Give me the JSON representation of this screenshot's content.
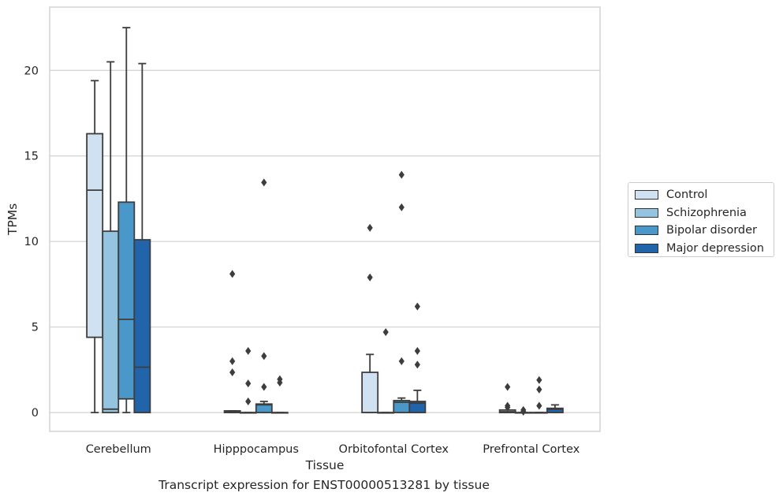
{
  "caption": "Transcript expression for ENST00000513281 by tissue",
  "chart_data": {
    "type": "boxplot",
    "xlabel": "Tissue",
    "ylabel": "TPMs",
    "ylim": [
      -1.1,
      23.7
    ],
    "yticks": [
      0,
      5,
      10,
      15,
      20
    ],
    "grid": "horizontal",
    "legend_position": "right",
    "categories": [
      "Cerebellum",
      "Hipppocampus",
      "Orbitofontal Cortex",
      "Prefrontal Cortex"
    ],
    "series": [
      {
        "name": "Control",
        "color": "#d0e1f2",
        "boxes": [
          {
            "q1": 4.4,
            "median": 13.0,
            "q3": 16.3,
            "whisker_low": 0,
            "whisker_high": 19.4,
            "outliers": []
          },
          {
            "q1": 0,
            "median": 0.05,
            "q3": 0.1,
            "whisker_low": 0,
            "whisker_high": 0.1,
            "outliers": [
              8.1,
              3.0,
              2.35
            ]
          },
          {
            "q1": 0,
            "median": 0,
            "q3": 2.35,
            "whisker_low": 0,
            "whisker_high": 3.4,
            "outliers": [
              10.8,
              7.9
            ]
          },
          {
            "q1": 0,
            "median": 0.05,
            "q3": 0.15,
            "whisker_low": 0,
            "whisker_high": 0.15,
            "outliers": [
              1.5,
              0.4,
              0.3
            ]
          }
        ]
      },
      {
        "name": "Schizophrenia",
        "color": "#94c4df",
        "boxes": [
          {
            "q1": 0,
            "median": 0.2,
            "q3": 10.6,
            "whisker_low": 0,
            "whisker_high": 20.5,
            "outliers": []
          },
          {
            "q1": 0,
            "median": 0,
            "q3": 0,
            "whisker_low": 0,
            "whisker_high": 0,
            "outliers": [
              3.6,
              1.7,
              0.65
            ]
          },
          {
            "q1": 0,
            "median": 0,
            "q3": 0,
            "whisker_low": 0,
            "whisker_high": 0,
            "outliers": [
              4.7
            ]
          },
          {
            "q1": 0,
            "median": 0,
            "q3": 0,
            "whisker_low": 0,
            "whisker_high": 0,
            "outliers": [
              0.15,
              0.05
            ]
          }
        ]
      },
      {
        "name": "Bipolar disorder",
        "color": "#4a98c9",
        "boxes": [
          {
            "q1": 0.8,
            "median": 5.45,
            "q3": 12.3,
            "whisker_low": 0,
            "whisker_high": 22.5,
            "outliers": []
          },
          {
            "q1": 0,
            "median": 0.45,
            "q3": 0.5,
            "whisker_low": 0,
            "whisker_high": 0.65,
            "outliers": [
              13.45,
              3.3,
              1.5
            ]
          },
          {
            "q1": 0,
            "median": 0.6,
            "q3": 0.7,
            "whisker_low": 0,
            "whisker_high": 0.85,
            "outliers": [
              13.9,
              12.0,
              3.0
            ]
          },
          {
            "q1": 0,
            "median": 0,
            "q3": 0,
            "whisker_low": 0,
            "whisker_high": 0,
            "outliers": [
              1.9,
              1.35,
              0.4
            ]
          }
        ]
      },
      {
        "name": "Major depression",
        "color": "#2264aa",
        "boxes": [
          {
            "q1": 0,
            "median": 2.65,
            "q3": 10.1,
            "whisker_low": 0,
            "whisker_high": 20.4,
            "outliers": []
          },
          {
            "q1": 0,
            "median": 0,
            "q3": 0,
            "whisker_low": 0,
            "whisker_high": 0,
            "outliers": [
              1.95,
              1.75
            ]
          },
          {
            "q1": 0,
            "median": 0.55,
            "q3": 0.65,
            "whisker_low": 0,
            "whisker_high": 1.3,
            "outliers": [
              6.2,
              3.6,
              2.8
            ]
          },
          {
            "q1": 0,
            "median": 0.2,
            "q3": 0.25,
            "whisker_low": 0,
            "whisker_high": 0.45,
            "outliers": []
          }
        ]
      }
    ]
  }
}
